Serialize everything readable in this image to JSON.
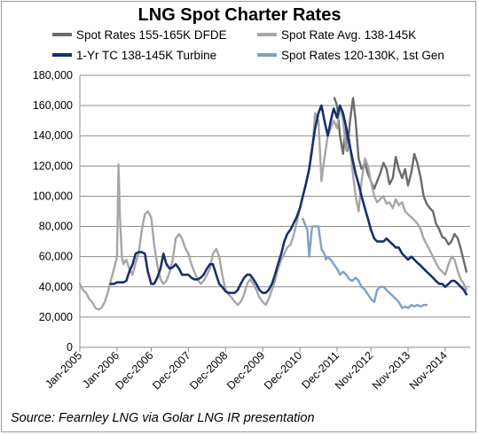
{
  "chart_data": {
    "type": "line",
    "title": "LNG Spot Charter Rates",
    "xlabel": "",
    "ylabel": "",
    "ylim": [
      0,
      180000
    ],
    "yticks": [
      0,
      20000,
      40000,
      60000,
      80000,
      100000,
      120000,
      140000,
      160000,
      180000
    ],
    "ytick_labels": [
      "0",
      "20,000",
      "40,000",
      "60,000",
      "80,000",
      "100,000",
      "120,000",
      "140,000",
      "160,000",
      "180,000"
    ],
    "xlim": [
      2005.0,
      2015.5
    ],
    "xticks": [
      2005.0,
      2006.0,
      2006.92,
      2007.92,
      2008.92,
      2009.92,
      2010.92,
      2011.92,
      2012.83,
      2013.83,
      2014.83
    ],
    "xtick_labels": [
      "Jan-2005",
      "Jan-2006",
      "Dec-2006",
      "Dec-2007",
      "Dec-2008",
      "Dec-2009",
      "Dec-2010",
      "Dec-2011",
      "Nov-2012",
      "Nov-2013",
      "Nov-2014"
    ],
    "grid": "horizontal",
    "legend_position": "top",
    "series": [
      {
        "name": "Spot Rates 155-165K DFDE",
        "color": "#6b6b6b",
        "x": [
          2011.85,
          2011.92,
          2012.0,
          2012.08,
          2012.15,
          2012.2,
          2012.27,
          2012.35,
          2012.42,
          2012.5,
          2012.58,
          2012.67,
          2012.75,
          2012.83,
          2012.92,
          2013.0,
          2013.08,
          2013.17,
          2013.25,
          2013.33,
          2013.42,
          2013.5,
          2013.58,
          2013.67,
          2013.75,
          2013.83,
          2013.92,
          2014.0,
          2014.08,
          2014.17,
          2014.25,
          2014.33,
          2014.42,
          2014.5,
          2014.58,
          2014.67,
          2014.75,
          2014.83,
          2014.92,
          2015.0,
          2015.08,
          2015.17,
          2015.25,
          2015.32,
          2015.4
        ],
        "values": [
          165000,
          160000,
          140000,
          128000,
          145000,
          130000,
          150000,
          165000,
          150000,
          125000,
          118000,
          122000,
          115000,
          110000,
          105000,
          110000,
          115000,
          122000,
          118000,
          108000,
          112000,
          126000,
          118000,
          112000,
          118000,
          107000,
          116000,
          128000,
          122000,
          112000,
          100000,
          95000,
          92000,
          90000,
          82000,
          78000,
          73000,
          72000,
          68000,
          70000,
          75000,
          72000,
          65000,
          58000,
          50000
        ]
      },
      {
        "name": "Spot Rate Avg. 138-145K",
        "color": "#a6a6a6",
        "x": [
          2005.0,
          2005.08,
          2005.17,
          2005.25,
          2005.33,
          2005.42,
          2005.5,
          2005.58,
          2005.67,
          2005.75,
          2005.83,
          2005.92,
          2006.0,
          2006.04,
          2006.08,
          2006.13,
          2006.17,
          2006.25,
          2006.33,
          2006.42,
          2006.5,
          2006.58,
          2006.67,
          2006.75,
          2006.83,
          2006.92,
          2007.0,
          2007.08,
          2007.17,
          2007.25,
          2007.33,
          2007.42,
          2007.5,
          2007.58,
          2007.67,
          2007.75,
          2007.83,
          2007.92,
          2008.0,
          2008.08,
          2008.17,
          2008.25,
          2008.33,
          2008.42,
          2008.5,
          2008.58,
          2008.67,
          2008.75,
          2008.83,
          2008.92,
          2009.0,
          2009.08,
          2009.17,
          2009.25,
          2009.33,
          2009.42,
          2009.5,
          2009.58,
          2009.67,
          2009.75,
          2009.83,
          2009.92,
          2010.0,
          2010.08,
          2010.17,
          2010.25,
          2010.33,
          2010.42,
          2010.5,
          2010.58,
          2010.67,
          2010.75,
          2010.83,
          2010.92,
          2011.0,
          2011.08,
          2011.17,
          2011.25,
          2011.33,
          2011.42,
          2011.5,
          2011.58,
          2011.67,
          2011.75,
          2011.83,
          2011.92,
          2012.0,
          2012.08,
          2012.17,
          2012.25,
          2012.33,
          2012.42,
          2012.5,
          2012.58,
          2012.67,
          2012.75,
          2012.83,
          2012.92,
          2013.0,
          2013.08,
          2013.17,
          2013.25,
          2013.33,
          2013.42,
          2013.5,
          2013.58,
          2013.67,
          2013.75,
          2013.83,
          2013.92,
          2014.0,
          2014.08,
          2014.17,
          2014.25,
          2014.33,
          2014.42,
          2014.5,
          2014.58,
          2014.67,
          2014.75,
          2014.83,
          2014.92,
          2015.0,
          2015.08,
          2015.17,
          2015.25,
          2015.33,
          2015.4
        ],
        "values": [
          42000,
          38000,
          36000,
          32000,
          30000,
          26000,
          25000,
          26000,
          30000,
          36000,
          44000,
          52000,
          60000,
          121000,
          85000,
          60000,
          55000,
          58000,
          52000,
          48000,
          56000,
          62000,
          78000,
          88000,
          90000,
          86000,
          68000,
          55000,
          45000,
          42000,
          44000,
          50000,
          58000,
          72000,
          75000,
          72000,
          66000,
          62000,
          55000,
          50000,
          45000,
          42000,
          44000,
          48000,
          52000,
          62000,
          65000,
          60000,
          48000,
          38000,
          35000,
          33000,
          30000,
          28000,
          30000,
          35000,
          42000,
          45000,
          42000,
          38000,
          33000,
          30000,
          28000,
          32000,
          38000,
          44000,
          52000,
          58000,
          62000,
          66000,
          68000,
          74000,
          82000,
          92000,
          100000,
          108000,
          118000,
          130000,
          155000,
          150000,
          110000,
          125000,
          140000,
          145000,
          150000,
          145000,
          160000,
          150000,
          130000,
          138000,
          118000,
          100000,
          90000,
          110000,
          125000,
          120000,
          110000,
          100000,
          96000,
          98000,
          100000,
          95000,
          96000,
          92000,
          98000,
          94000,
          96000,
          90000,
          88000,
          86000,
          84000,
          82000,
          78000,
          72000,
          68000,
          64000,
          60000,
          56000,
          52000,
          50000,
          48000,
          55000,
          60000,
          58000,
          50000,
          45000,
          42000,
          38000
        ]
      },
      {
        "name": "1-Yr TC 138-145K Turbine",
        "color": "#1a2f6e",
        "x": [
          2005.83,
          2005.92,
          2006.0,
          2006.08,
          2006.17,
          2006.25,
          2006.33,
          2006.42,
          2006.5,
          2006.58,
          2006.67,
          2006.75,
          2006.83,
          2006.92,
          2007.0,
          2007.08,
          2007.17,
          2007.25,
          2007.33,
          2007.42,
          2007.5,
          2007.58,
          2007.67,
          2007.75,
          2007.83,
          2007.92,
          2008.0,
          2008.08,
          2008.17,
          2008.25,
          2008.33,
          2008.42,
          2008.5,
          2008.58,
          2008.67,
          2008.75,
          2008.83,
          2008.92,
          2009.0,
          2009.08,
          2009.17,
          2009.25,
          2009.33,
          2009.42,
          2009.5,
          2009.58,
          2009.67,
          2009.75,
          2009.83,
          2009.92,
          2010.0,
          2010.08,
          2010.17,
          2010.25,
          2010.33,
          2010.42,
          2010.5,
          2010.58,
          2010.67,
          2010.75,
          2010.83,
          2010.92,
          2011.0,
          2011.08,
          2011.17,
          2011.25,
          2011.33,
          2011.42,
          2011.5,
          2011.58,
          2011.67,
          2011.75,
          2011.83,
          2011.92,
          2012.0,
          2012.08,
          2012.17,
          2012.25,
          2012.33,
          2012.42,
          2012.5,
          2012.58,
          2012.67,
          2012.75,
          2012.83,
          2012.92,
          2013.0,
          2013.08,
          2013.17,
          2013.25,
          2013.33,
          2013.42,
          2013.5,
          2013.58,
          2013.67,
          2013.75,
          2013.83,
          2013.92,
          2014.0,
          2014.08,
          2014.17,
          2014.25,
          2014.33,
          2014.42,
          2014.5,
          2014.58,
          2014.67,
          2014.75,
          2014.83,
          2014.92,
          2015.0,
          2015.08,
          2015.17,
          2015.25,
          2015.33,
          2015.4
        ],
        "values": [
          42000,
          42000,
          43000,
          43000,
          43000,
          44000,
          50000,
          55000,
          62000,
          63000,
          63000,
          62000,
          50000,
          42000,
          42000,
          46000,
          52000,
          62000,
          55000,
          52000,
          53000,
          55000,
          52000,
          48000,
          48000,
          48000,
          46000,
          45000,
          45000,
          46000,
          48000,
          52000,
          55000,
          55000,
          48000,
          42000,
          40000,
          37000,
          36000,
          36000,
          36000,
          38000,
          42000,
          46000,
          48000,
          48000,
          45000,
          42000,
          38000,
          36000,
          36000,
          38000,
          42000,
          48000,
          55000,
          62000,
          70000,
          75000,
          78000,
          82000,
          86000,
          92000,
          100000,
          108000,
          118000,
          132000,
          145000,
          155000,
          160000,
          150000,
          140000,
          150000,
          158000,
          152000,
          160000,
          155000,
          145000,
          135000,
          125000,
          115000,
          108000,
          100000,
          92000,
          85000,
          78000,
          72000,
          70000,
          70000,
          70000,
          72000,
          70000,
          68000,
          66000,
          66000,
          62000,
          60000,
          58000,
          60000,
          58000,
          56000,
          54000,
          52000,
          50000,
          48000,
          46000,
          44000,
          42000,
          42000,
          40000,
          42000,
          44000,
          44000,
          42000,
          40000,
          38000,
          35000
        ]
      },
      {
        "name": "Spot Rates 120-130K, 1st Gen",
        "color": "#7f9fc6",
        "x": [
          2011.0,
          2011.08,
          2011.12,
          2011.17,
          2011.25,
          2011.33,
          2011.42,
          2011.5,
          2011.58,
          2011.62,
          2011.67,
          2011.75,
          2011.83,
          2011.92,
          2012.0,
          2012.08,
          2012.17,
          2012.25,
          2012.33,
          2012.42,
          2012.5,
          2012.58,
          2012.67,
          2012.75,
          2012.83,
          2012.92,
          2013.0,
          2013.08,
          2013.17,
          2013.25,
          2013.33,
          2013.42,
          2013.5,
          2013.58,
          2013.67,
          2013.75,
          2013.83,
          2013.92,
          2014.0,
          2014.08,
          2014.17,
          2014.25,
          2014.33
        ],
        "values": [
          85000,
          80000,
          78000,
          60000,
          80000,
          80000,
          80000,
          65000,
          62000,
          58000,
          60000,
          58000,
          55000,
          52000,
          48000,
          50000,
          48000,
          45000,
          44000,
          46000,
          44000,
          40000,
          38000,
          35000,
          32000,
          30000,
          38000,
          40000,
          40000,
          38000,
          36000,
          34000,
          32000,
          30000,
          26000,
          27000,
          26000,
          28000,
          27000,
          28000,
          27000,
          28000,
          28000
        ]
      }
    ]
  },
  "header": {
    "title": "LNG Spot Charter Rates"
  },
  "legend": [
    "Spot Rates 155-165K DFDE",
    "Spot Rate Avg. 138-145K",
    "1-Yr TC 138-145K Turbine",
    "Spot Rates 120-130K, 1st Gen"
  ],
  "footer": {
    "source": "Source: Fearnley LNG via Golar LNG IR presentation"
  }
}
